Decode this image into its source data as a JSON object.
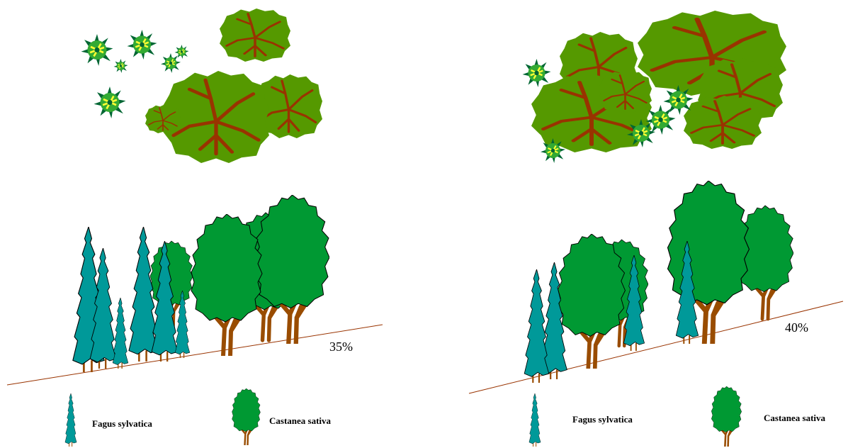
{
  "panels": [
    {
      "slope": "35%",
      "legend": [
        {
          "label": "Fagus sylvatica"
        },
        {
          "label": "Castanea sativa"
        }
      ]
    },
    {
      "slope": "40%",
      "legend": [
        {
          "label": "Fagus sylvatica"
        },
        {
          "label": "Castanea sativa"
        }
      ]
    }
  ]
}
